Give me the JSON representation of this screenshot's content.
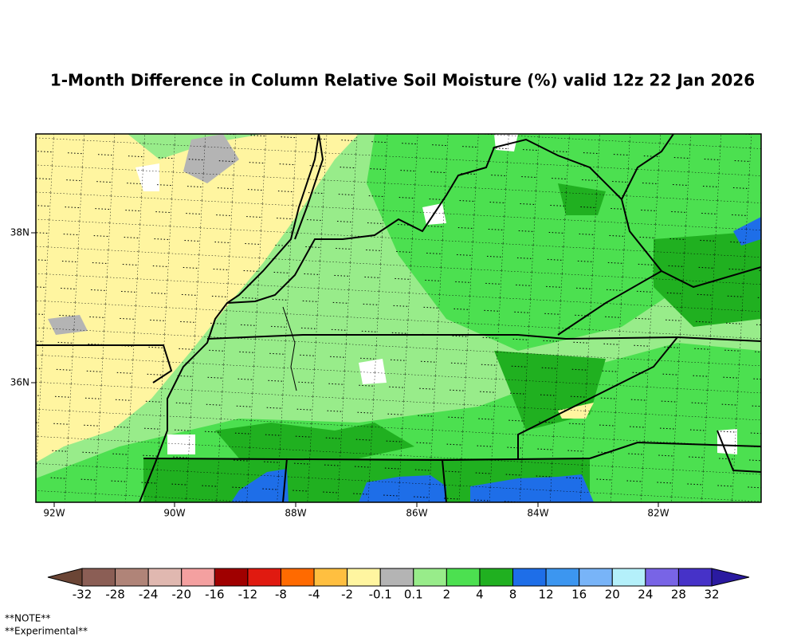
{
  "header": {
    "title": "1-Month Difference in Column Relative Soil Moisture (%) valid 12z 22 Jan 2026"
  },
  "map": {
    "lon_labels": [
      "92W",
      "90W",
      "88W",
      "86W",
      "84W",
      "82W"
    ],
    "lat_labels": [
      "38N",
      "36N"
    ]
  },
  "colorbar": {
    "labels": [
      "-32",
      "-28",
      "-24",
      "-20",
      "-16",
      "-12",
      "-8",
      "-4",
      "-2",
      "-0.1",
      "0.1",
      "2",
      "4",
      "8",
      "12",
      "16",
      "20",
      "24",
      "28",
      "32"
    ],
    "colors": [
      "#8b5e55",
      "#b08478",
      "#e0b8b0",
      "#f4a0a0",
      "#a00000",
      "#e01a10",
      "#ff6a00",
      "#ffbf40",
      "#fff5a0",
      "#b4b4b4",
      "#98ec8a",
      "#4ce050",
      "#20b020",
      "#1e6ee8",
      "#3c96f0",
      "#78b4f8",
      "#b4f0fa",
      "#7864e6",
      "#4632c8"
    ],
    "low_color": "#6b4535",
    "high_color": "#2a1aa0"
  },
  "notes": [
    "**NOTE**",
    "**Experimental**"
  ]
}
